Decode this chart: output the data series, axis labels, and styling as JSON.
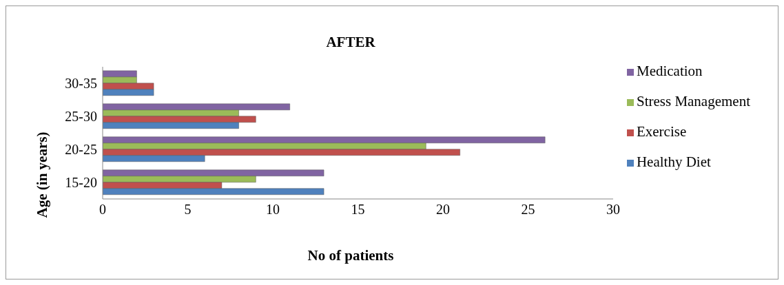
{
  "chart_data": {
    "type": "bar",
    "orientation": "horizontal",
    "title": "AFTER",
    "xlabel": "No  of patients",
    "ylabel": "Age (in years)",
    "categories": [
      "30-35",
      "25-30",
      "20-25",
      "15-20"
    ],
    "series": [
      {
        "name": "Medication",
        "color": "#8064a2",
        "values": [
          2,
          11,
          26,
          13
        ]
      },
      {
        "name": "Stress Management",
        "color": "#9bbb59",
        "values": [
          2,
          8,
          19,
          9
        ]
      },
      {
        "name": "Exercise",
        "color": "#c0504d",
        "values": [
          3,
          9,
          21,
          7
        ]
      },
      {
        "name": "Healthy Diet",
        "color": "#4f81bd",
        "values": [
          3,
          8,
          6,
          13
        ]
      }
    ],
    "xlim": [
      0,
      30
    ],
    "xticks": [
      0,
      5,
      10,
      15,
      20,
      25,
      30
    ],
    "grid": false,
    "legend": "right"
  }
}
